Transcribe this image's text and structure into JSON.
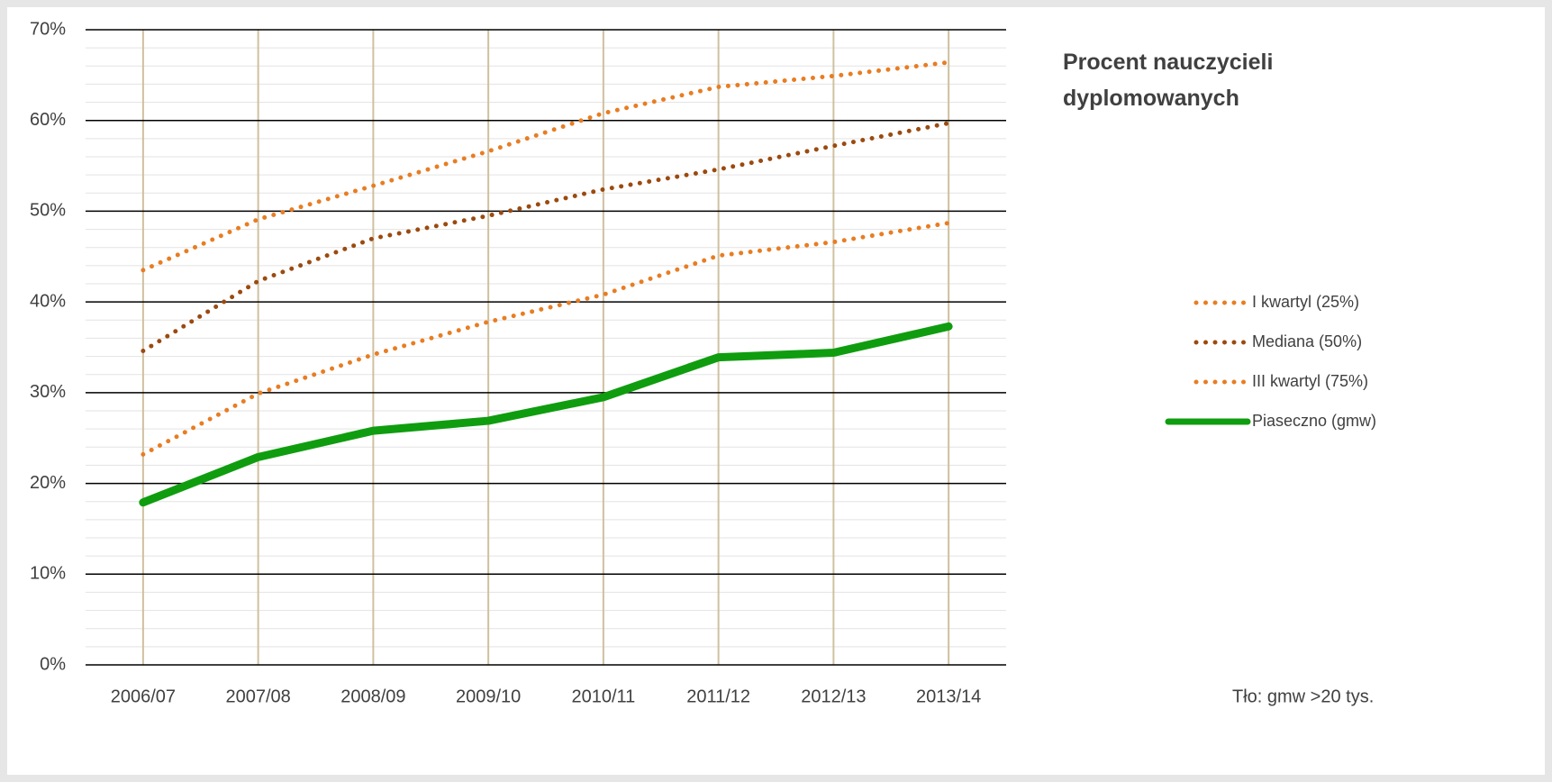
{
  "chart_data": {
    "type": "line",
    "title": "Procent nauczycieli dyplomowanych",
    "annotation": "Tło: gmw >20 tys.",
    "categories": [
      "2006/07",
      "2007/08",
      "2008/09",
      "2009/10",
      "2010/11",
      "2011/12",
      "2012/13",
      "2013/14"
    ],
    "series": [
      {
        "name": "I kwartyl (25%)",
        "color": "#e87d22",
        "style": "dotted",
        "values": [
          23.2,
          29.9,
          34.2,
          37.8,
          40.8,
          45.1,
          46.6,
          48.7
        ]
      },
      {
        "name": "Mediana (50%)",
        "color": "#9b4a0f",
        "style": "dotted",
        "values": [
          34.6,
          42.3,
          47.0,
          49.5,
          52.4,
          54.6,
          57.2,
          59.7
        ]
      },
      {
        "name": "III kwartyl (75%)",
        "color": "#e87d22",
        "style": "dotted",
        "values": [
          43.5,
          49.1,
          52.8,
          56.6,
          60.8,
          63.7,
          64.9,
          66.4
        ]
      },
      {
        "name": "Piaseczno (gmw)",
        "color": "#0f9d0f",
        "style": "solid",
        "values": [
          17.9,
          22.9,
          25.8,
          26.9,
          29.5,
          33.9,
          34.4,
          37.3
        ]
      }
    ],
    "ylim": [
      0,
      70
    ],
    "yticks": [
      {
        "value": 0,
        "label": "0%"
      },
      {
        "value": 10,
        "label": "10%"
      },
      {
        "value": 20,
        "label": "20%"
      },
      {
        "value": 30,
        "label": "30%"
      },
      {
        "value": 40,
        "label": "40%"
      },
      {
        "value": 50,
        "label": "50%"
      },
      {
        "value": 60,
        "label": "60%"
      },
      {
        "value": 70,
        "label": "70%"
      }
    ],
    "grid": true,
    "legend": "right"
  }
}
